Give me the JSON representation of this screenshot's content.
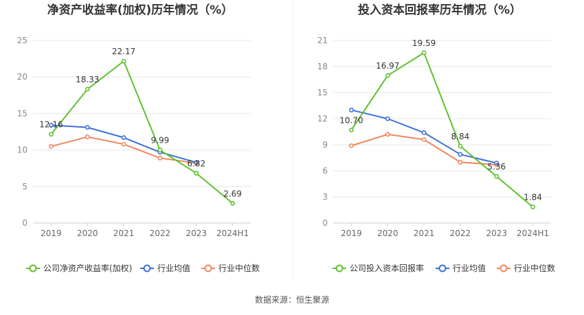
{
  "source_label": "数据来源：恒生聚源",
  "colors": {
    "company": "#5cc12d",
    "industry_avg": "#3b6fd8",
    "industry_median": "#f0865d",
    "grid": "#e6e6e6",
    "axis_text": "#666666",
    "title": "#333333"
  },
  "chart_data": [
    {
      "type": "line",
      "title": "净资产收益率(加权)历年情况（%）",
      "categories": [
        "2019",
        "2020",
        "2021",
        "2022",
        "2023",
        "2024H1"
      ],
      "ylim": [
        0,
        25
      ],
      "yticks": [
        0,
        5,
        10,
        15,
        20,
        25
      ],
      "legend_position": "bottom",
      "grid": true,
      "series": [
        {
          "name": "公司净资产收益率(加权)",
          "color_key": "company",
          "values": [
            12.16,
            18.33,
            22.17,
            9.99,
            6.82,
            2.69
          ],
          "labels": [
            "12.16",
            "18.33",
            "22.17",
            "9.99",
            "6.82",
            "2.69"
          ]
        },
        {
          "name": "行业均值",
          "color_key": "industry_avg",
          "values": [
            13.4,
            13.1,
            11.7,
            9.7,
            8.3,
            null
          ]
        },
        {
          "name": "行业中位数",
          "color_key": "industry_median",
          "values": [
            10.5,
            11.8,
            10.8,
            8.9,
            8.2,
            null
          ]
        }
      ]
    },
    {
      "type": "line",
      "title": "投入资本回报率历年情况（%）",
      "categories": [
        "2019",
        "2020",
        "2021",
        "2022",
        "2023",
        "2024H1"
      ],
      "ylim": [
        0,
        21
      ],
      "yticks": [
        0,
        3,
        6,
        9,
        12,
        15,
        18,
        21
      ],
      "legend_position": "bottom",
      "grid": true,
      "series": [
        {
          "name": "公司投入资本回报率",
          "color_key": "company",
          "values": [
            10.7,
            16.97,
            19.59,
            8.84,
            5.36,
            1.84
          ],
          "labels": [
            "10.70",
            "16.97",
            "19.59",
            "8.84",
            "5.36",
            "1.84"
          ]
        },
        {
          "name": "行业均值",
          "color_key": "industry_avg",
          "values": [
            13.0,
            12.0,
            10.4,
            7.9,
            6.9,
            null
          ]
        },
        {
          "name": "行业中位数",
          "color_key": "industry_median",
          "values": [
            8.9,
            10.2,
            9.6,
            7.0,
            6.7,
            null
          ]
        }
      ]
    }
  ]
}
